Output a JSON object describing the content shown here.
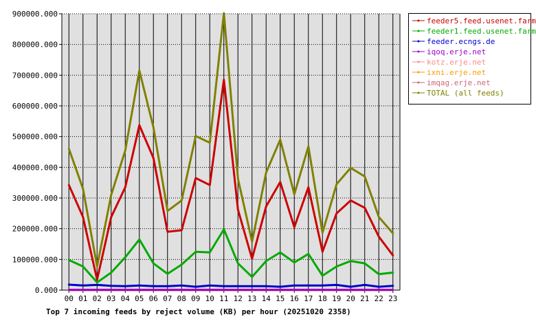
{
  "chart_data": {
    "type": "line",
    "title": "Top 7 incoming feeds by reject volume (KB) per hour (20251020 2358)",
    "xlabel": "",
    "ylabel": "",
    "ylim": [
      0,
      900000
    ],
    "y_ticks": [
      "0.000",
      "100000.000",
      "200000.000",
      "300000.000",
      "400000.000",
      "500000.000",
      "600000.000",
      "700000.000",
      "800000.000",
      "900000.000"
    ],
    "categories": [
      "00",
      "01",
      "02",
      "03",
      "04",
      "05",
      "06",
      "07",
      "08",
      "09",
      "10",
      "11",
      "12",
      "13",
      "14",
      "15",
      "16",
      "17",
      "18",
      "19",
      "20",
      "21",
      "22",
      "23"
    ],
    "grid": true,
    "legend_position": "right",
    "series": [
      {
        "name": "feeder5.feed.usenet.farm",
        "color": "#cc0000",
        "values": [
          342000,
          238000,
          34000,
          238000,
          335000,
          537000,
          430000,
          190000,
          195000,
          365000,
          342000,
          685000,
          262000,
          102000,
          273000,
          352000,
          205000,
          335000,
          125000,
          250000,
          292000,
          268000,
          174000,
          113000
        ]
      },
      {
        "name": "feeder1.feed.usenet.farm",
        "color": "#00aa00",
        "values": [
          98000,
          77000,
          25000,
          57000,
          107000,
          165000,
          87000,
          53000,
          83000,
          125000,
          123000,
          198000,
          87000,
          43000,
          95000,
          123000,
          90000,
          118000,
          47000,
          77000,
          95000,
          87000,
          52000,
          57000
        ]
      },
      {
        "name": "feeder.ecngs.de",
        "color": "#0000cc",
        "values": [
          18000,
          15000,
          17000,
          14000,
          13000,
          15000,
          13000,
          13000,
          15000,
          11000,
          15000,
          13000,
          13000,
          13000,
          13000,
          11000,
          15000,
          15000,
          15000,
          17000,
          11000,
          17000,
          11000,
          14000
        ]
      },
      {
        "name": "iqoq.erje.net",
        "color": "#9900cc",
        "values": [
          1000,
          1000,
          1000,
          1000,
          1000,
          1000,
          1000,
          1000,
          1000,
          1000,
          1000,
          1000,
          1000,
          1000,
          1000,
          1000,
          1000,
          1000,
          1000,
          1000,
          1000,
          1000,
          1000,
          1000
        ]
      },
      {
        "name": "kotz.erje.net",
        "color": "#ff8888",
        "values": [
          800,
          800,
          800,
          800,
          800,
          800,
          800,
          800,
          800,
          800,
          800,
          800,
          800,
          800,
          800,
          800,
          800,
          800,
          800,
          800,
          800,
          800,
          800,
          800
        ]
      },
      {
        "name": "ixni.erje.net",
        "color": "#ff9900",
        "values": [
          500,
          500,
          500,
          500,
          500,
          500,
          500,
          500,
          500,
          500,
          500,
          500,
          500,
          500,
          500,
          500,
          500,
          500,
          500,
          500,
          500,
          500,
          500,
          500
        ]
      },
      {
        "name": "imqag.erje.net",
        "color": "#cc6677",
        "values": [
          300,
          300,
          300,
          300,
          300,
          300,
          300,
          300,
          300,
          300,
          300,
          300,
          300,
          300,
          300,
          300,
          300,
          300,
          300,
          300,
          300,
          300,
          300,
          300
        ]
      },
      {
        "name": "TOTAL (all feeds)",
        "color": "#808000",
        "values": [
          460000,
          330000,
          77000,
          310000,
          455000,
          715000,
          530000,
          258000,
          292000,
          502000,
          480000,
          902000,
          363000,
          158000,
          383000,
          490000,
          312000,
          468000,
          187000,
          345000,
          398000,
          370000,
          238000,
          185000
        ]
      }
    ]
  }
}
